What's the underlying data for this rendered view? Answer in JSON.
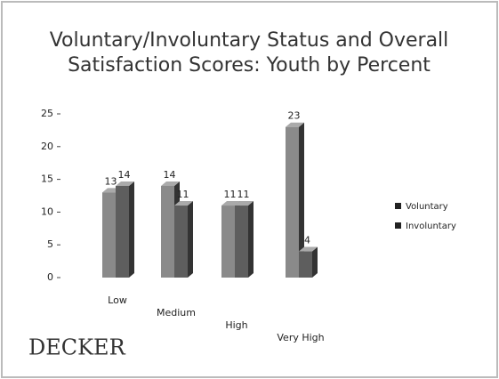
{
  "chart_data": {
    "type": "bar",
    "title": [
      "Voluntary/Involuntary  Status and Overall",
      "Satisfaction Scores:  Youth by Percent"
    ],
    "categories": [
      "Low",
      "Medium",
      "High",
      "Very High"
    ],
    "series": [
      {
        "name": "Voluntary",
        "color": "#8a8a8a",
        "values": [
          13,
          14,
          11,
          23
        ]
      },
      {
        "name": "Involuntary",
        "color": "#5e5e5e",
        "values": [
          14,
          11,
          11,
          4
        ]
      }
    ],
    "ylim": [
      0,
      25
    ],
    "yticks": [
      0,
      5,
      10,
      15,
      20,
      25
    ],
    "legend": "right",
    "logo": "DECKER"
  }
}
